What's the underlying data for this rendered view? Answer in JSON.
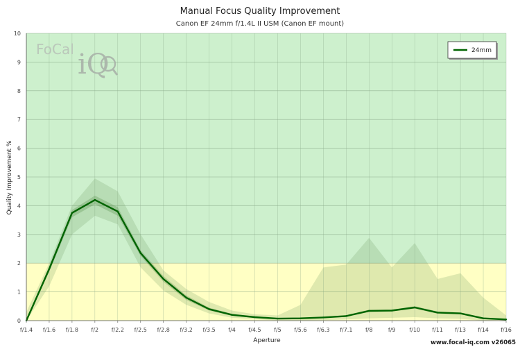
{
  "chart_data": {
    "type": "line",
    "title": "Manual Focus Quality Improvement",
    "subtitle": "Canon EF 24mm f/1.4L II USM (Canon EF mount)",
    "xlabel": "Aperture",
    "ylabel": "Quality Improvement %",
    "ylim": [
      0,
      10
    ],
    "yticks": [
      0,
      1,
      2,
      3,
      4,
      5,
      6,
      7,
      8,
      9,
      10
    ],
    "categories": [
      "f/1.4",
      "f/1.6",
      "f/1.8",
      "f/2",
      "f/2.2",
      "f/2.5",
      "f/2.8",
      "f/3.2",
      "f/3.5",
      "f/4",
      "f/4.5",
      "f/5",
      "f/5.6",
      "f/6.3",
      "f/7.1",
      "f/8",
      "f/9",
      "f/10",
      "f/11",
      "f/13",
      "f/14",
      "f/16"
    ],
    "series": [
      {
        "name": "24mm",
        "color": "#006400",
        "values": [
          0.0,
          1.8,
          3.75,
          4.2,
          3.8,
          2.35,
          1.45,
          0.8,
          0.4,
          0.2,
          0.12,
          0.07,
          0.08,
          0.11,
          0.16,
          0.34,
          0.35,
          0.46,
          0.28,
          0.25,
          0.08,
          0.04
        ]
      }
    ],
    "bands": [
      {
        "name": "inner-range",
        "upper": [
          0.0,
          1.9,
          3.85,
          4.35,
          3.95,
          2.45,
          1.55,
          0.88,
          0.45,
          0.24,
          0.14,
          0.09,
          0.1,
          0.13,
          0.19,
          0.38,
          0.38,
          0.5,
          0.32,
          0.28,
          0.1,
          0.05
        ],
        "lower": [
          0.0,
          1.7,
          3.6,
          4.05,
          3.65,
          2.25,
          1.35,
          0.72,
          0.35,
          0.17,
          0.1,
          0.05,
          0.06,
          0.09,
          0.13,
          0.3,
          0.32,
          0.42,
          0.24,
          0.22,
          0.06,
          0.03
        ]
      },
      {
        "name": "outer-range",
        "upper": [
          0.3,
          2.0,
          4.0,
          4.95,
          4.5,
          3.0,
          1.75,
          1.1,
          0.65,
          0.35,
          0.22,
          0.18,
          0.55,
          1.85,
          1.95,
          2.88,
          1.85,
          2.7,
          1.45,
          1.65,
          0.8,
          0.18
        ],
        "lower": [
          0.0,
          1.2,
          3.0,
          3.65,
          3.35,
          1.85,
          1.05,
          0.55,
          0.25,
          0.1,
          0.05,
          0.01,
          0.01,
          0.02,
          0.04,
          0.08,
          0.1,
          0.12,
          0.08,
          0.06,
          0.0,
          0.0
        ]
      }
    ],
    "zones": [
      {
        "name": "good",
        "from": 2,
        "to": 10,
        "color": "#cdf0cd"
      },
      {
        "name": "moderate",
        "from": 0,
        "to": 2,
        "color": "#ffffc4"
      }
    ],
    "grid": true,
    "legend_position": "top-right"
  },
  "branding": {
    "logo_word": "FoCal",
    "logo_mark": "iQ",
    "footer": "www.focal-iq.com v26065"
  }
}
